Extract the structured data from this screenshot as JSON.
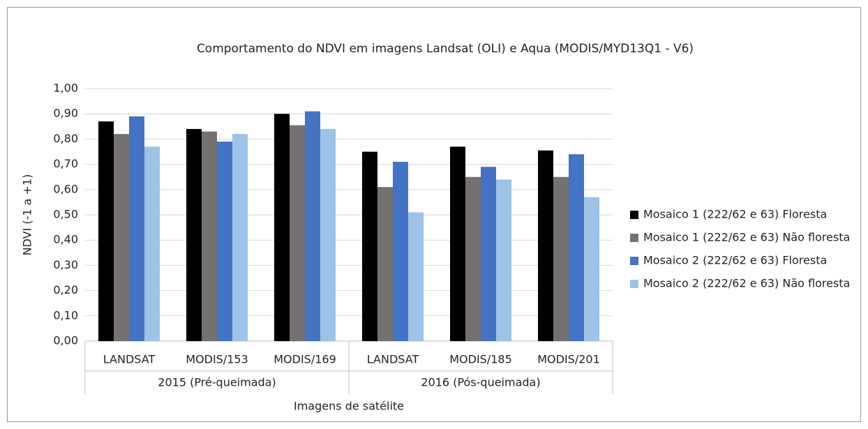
{
  "chart_data": {
    "type": "bar",
    "title": "Comportamento do NDVI em imagens Landsat (OLI) e Aqua (MODIS/MYD13Q1 - V6)",
    "y_label": "NDVI (-1 a +1)",
    "x_label": "Imagens de satélite",
    "groups": [
      {
        "label": "2015 (Pré-queimada)",
        "categories": [
          "LANDSAT",
          "MODIS/153",
          "MODIS/169"
        ]
      },
      {
        "label": "2016 (Pós-queimada)",
        "categories": [
          "LANDSAT",
          "MODIS/185",
          "MODIS/201"
        ]
      }
    ],
    "series": [
      {
        "name": "Mosaico 1 (222/62 e 63) Floresta",
        "color": "#000000",
        "values": [
          0.87,
          0.84,
          0.9,
          0.75,
          0.77,
          0.755
        ]
      },
      {
        "name": "Mosaico 1 (222/62 e 63) Não floresta",
        "color": "#767171",
        "values": [
          0.82,
          0.83,
          0.855,
          0.61,
          0.65,
          0.65
        ]
      },
      {
        "name": "Mosaico 2 (222/62 e 63) Floresta",
        "color": "#4472c4",
        "values": [
          0.89,
          0.79,
          0.91,
          0.71,
          0.69,
          0.74
        ]
      },
      {
        "name": "Mosaico 2 (222/62 e 63) Não floresta",
        "color": "#9dc3e6",
        "values": [
          0.77,
          0.82,
          0.84,
          0.51,
          0.64,
          0.57
        ]
      }
    ],
    "ylim": [
      0,
      1
    ],
    "yticks": [
      {
        "value": 0,
        "label": "0,00"
      },
      {
        "value": 0.1,
        "label": "0,10"
      },
      {
        "value": 0.2,
        "label": "0,20"
      },
      {
        "value": 0.3,
        "label": "0,30"
      },
      {
        "value": 0.4,
        "label": "0,40"
      },
      {
        "value": 0.5,
        "label": "0,50"
      },
      {
        "value": 0.6,
        "label": "0,60"
      },
      {
        "value": 0.7,
        "label": "0,70"
      },
      {
        "value": 0.8,
        "label": "0,80"
      },
      {
        "value": 0.9,
        "label": "0,90"
      },
      {
        "value": 1,
        "label": "1,00"
      }
    ],
    "grid": true,
    "legend": "right"
  }
}
